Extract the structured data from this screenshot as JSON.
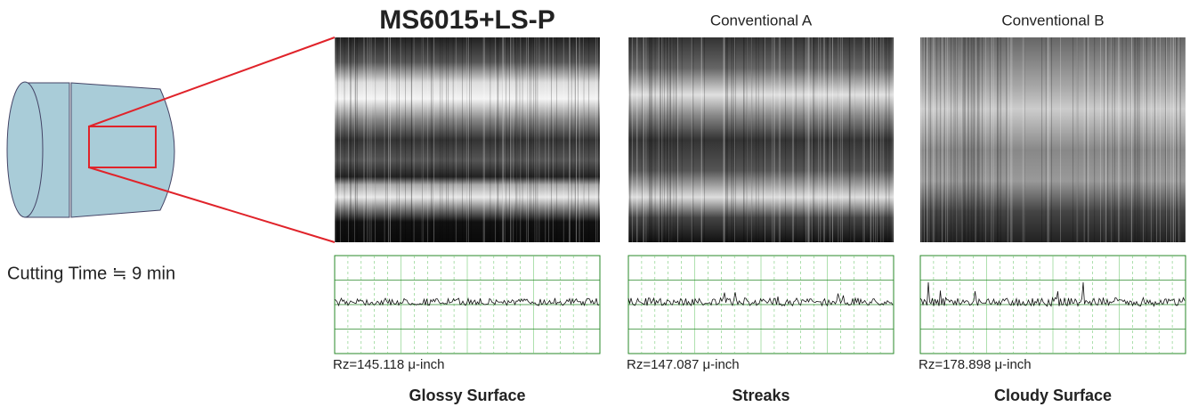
{
  "cutting_time": "Cutting Time ≒ 9 min",
  "panels": [
    {
      "title": "MS6015+LS-P",
      "rz": "Rz=145.118 μ-inch",
      "caption": "Glossy Surface"
    },
    {
      "title": "Conventional A",
      "rz": "Rz=147.087 μ-inch",
      "caption": "Streaks"
    },
    {
      "title": "Conventional B",
      "rz": "Rz=178.898 μ-inch",
      "caption": "Cloudy Surface"
    }
  ]
}
